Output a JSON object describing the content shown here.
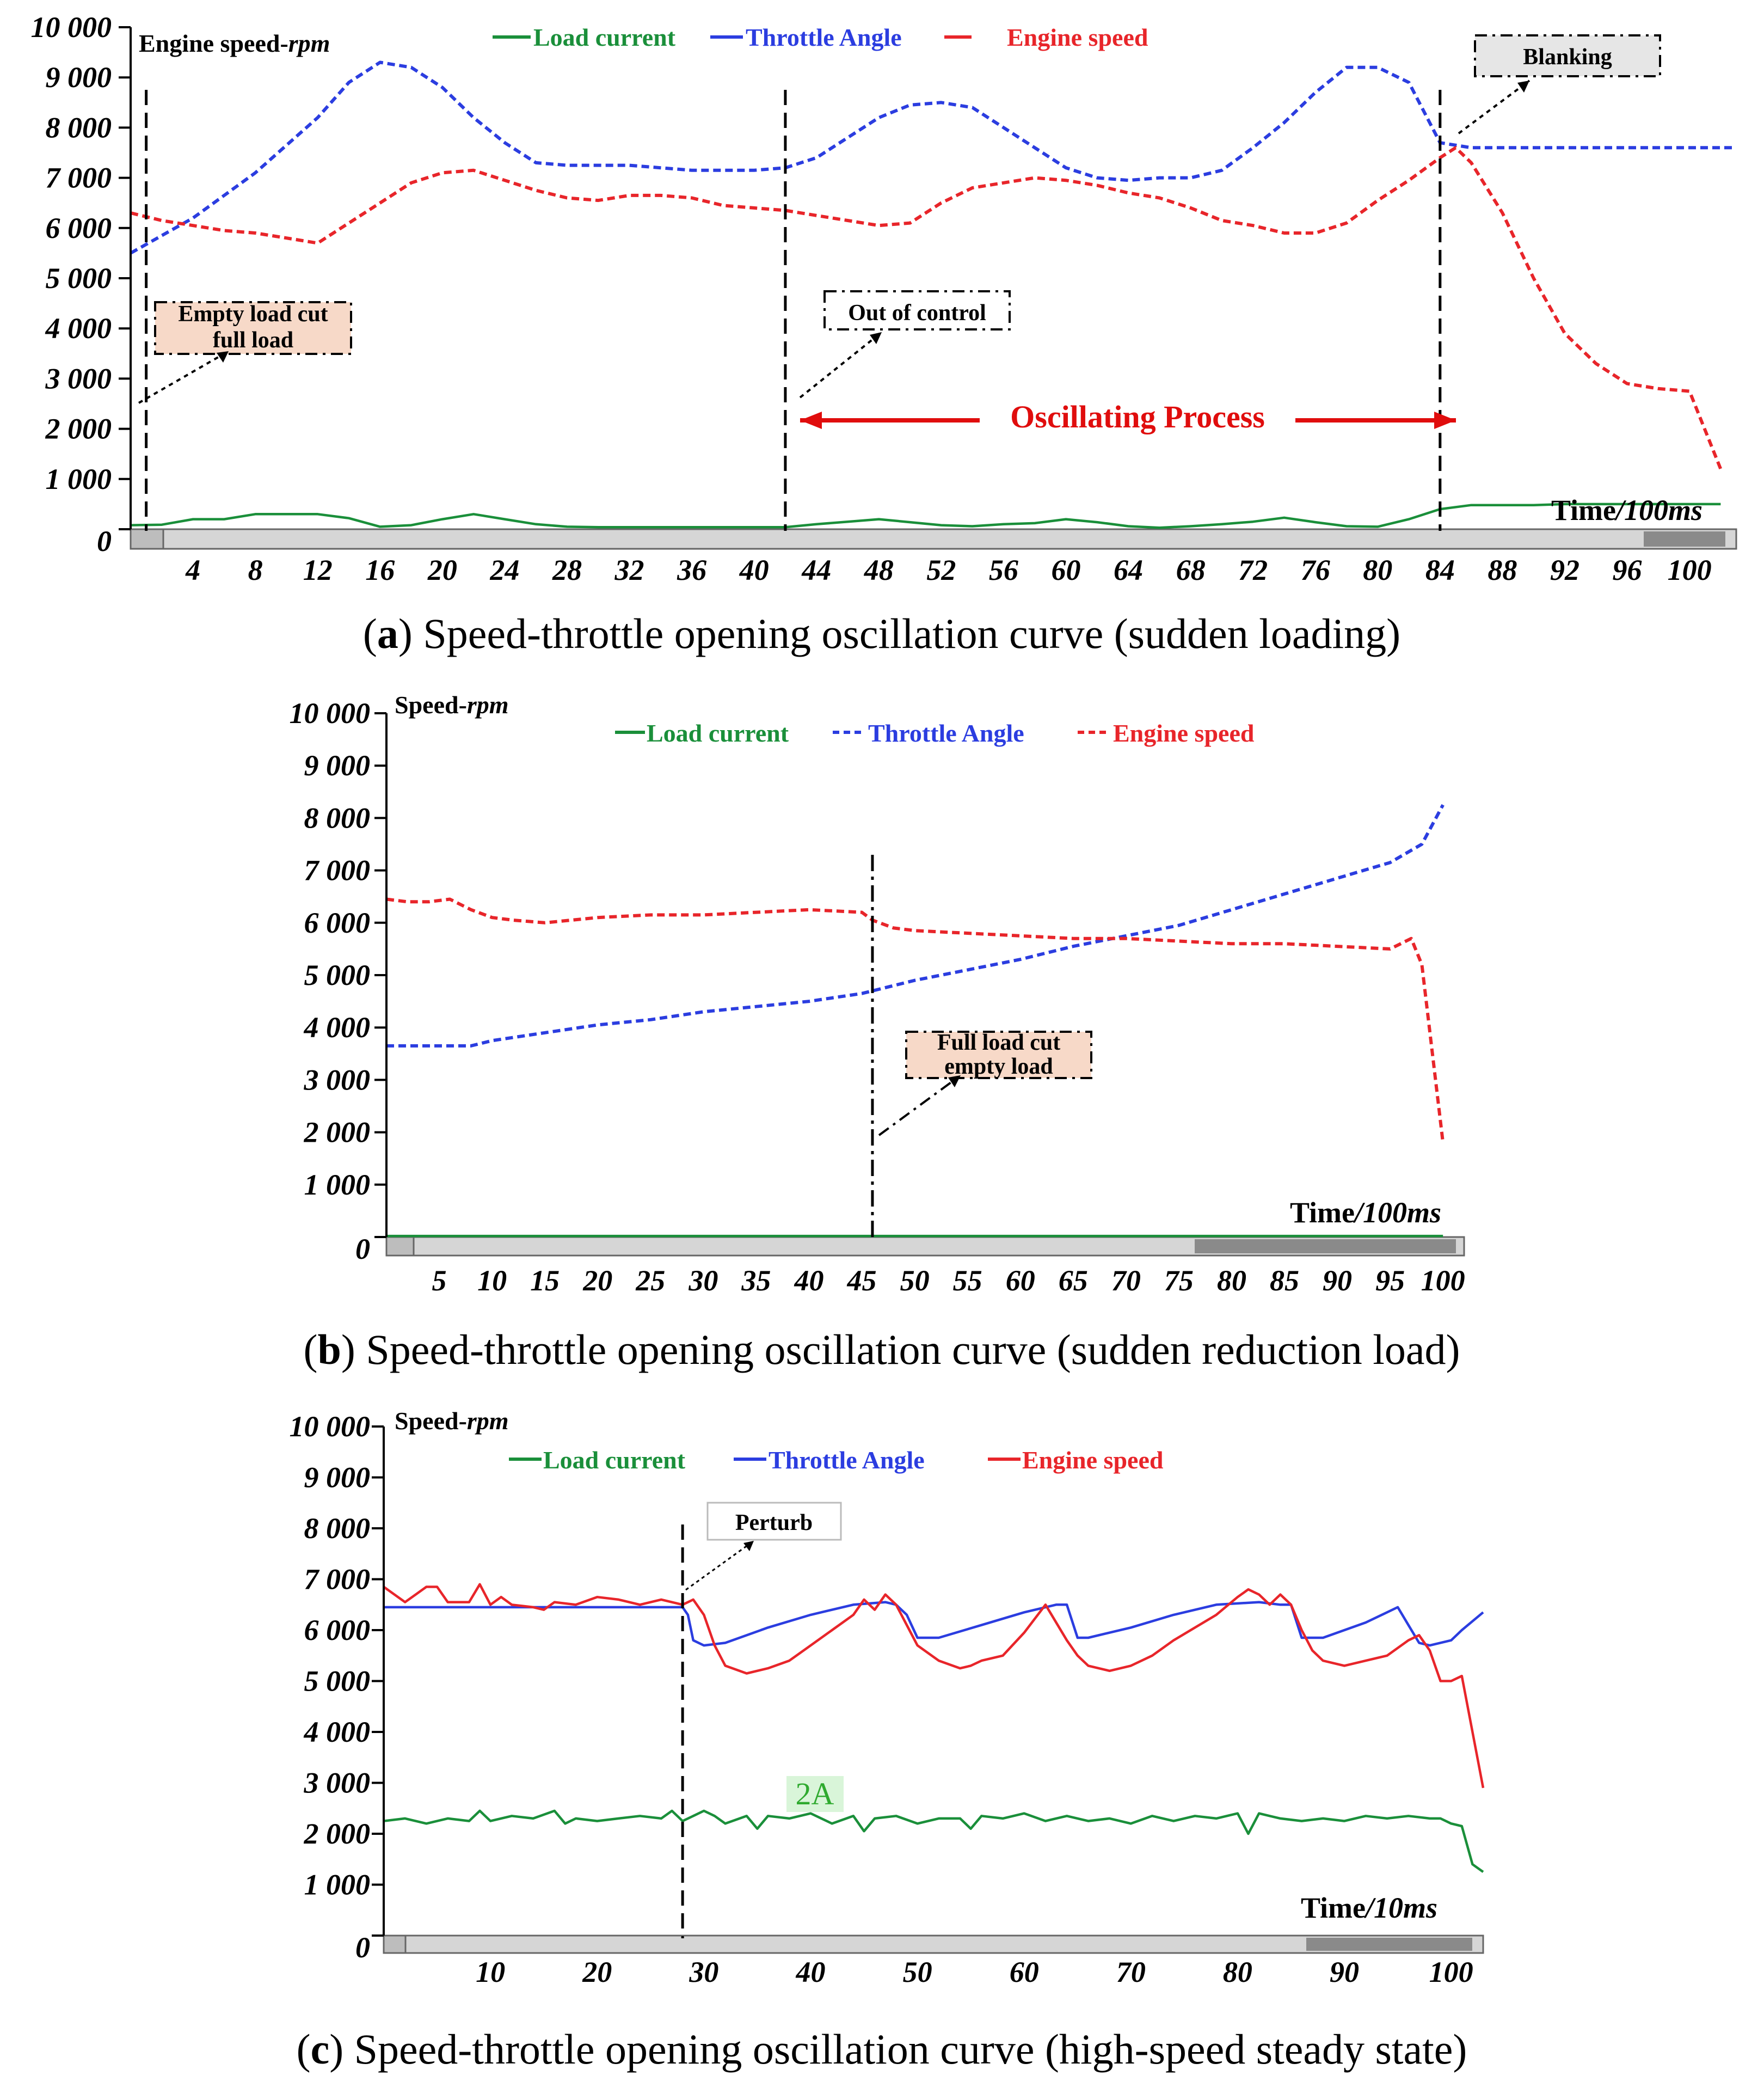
{
  "chart_data": [
    {
      "id": "a",
      "type": "line",
      "panel_letter": "a",
      "caption": "Speed-throttle opening oscillation curve (sudden loading)",
      "ylabel_main": "Engine speed-",
      "ylabel_unit": "rpm",
      "xlabel_main": "Time",
      "xlabel_unit": "/100ms",
      "ylim": [
        0,
        10000
      ],
      "xlim": [
        0,
        103
      ],
      "y_ticks": [
        0,
        1000,
        2000,
        3000,
        4000,
        5000,
        6000,
        7000,
        8000,
        9000,
        10000
      ],
      "y_tick_labels": [
        "0",
        "1 000",
        "2 000",
        "3 000",
        "4 000",
        "5 000",
        "6 000",
        "7 000",
        "8 000",
        "9 000",
        "10 000"
      ],
      "x_ticks": [
        4,
        8,
        12,
        16,
        20,
        24,
        28,
        32,
        36,
        40,
        44,
        48,
        52,
        56,
        60,
        64,
        68,
        72,
        76,
        80,
        84,
        88,
        92,
        96,
        100
      ],
      "x_tick_labels": [
        "4",
        "8",
        "12",
        "16",
        "20",
        "24",
        "28",
        "32",
        "36",
        "40",
        "44",
        "48",
        "52",
        "56",
        "60",
        "64",
        "68",
        "72",
        "76",
        "80",
        "84",
        "88",
        "92",
        "96",
        "100"
      ],
      "legend": [
        "Load current",
        "Throttle Angle",
        "Engine speed"
      ],
      "series": [
        {
          "name": "Throttle Angle",
          "color": "#2b3de0",
          "style": "dashed",
          "x": [
            0,
            4,
            8,
            12,
            14,
            16,
            18,
            20,
            22,
            24,
            26,
            28,
            30,
            32,
            34,
            36,
            38,
            40,
            42,
            44,
            46,
            48,
            50,
            52,
            54,
            56,
            58,
            60,
            62,
            64,
            66,
            68,
            70,
            72,
            74,
            76,
            78,
            80,
            82,
            84,
            86,
            88,
            92,
            96,
            100,
            103
          ],
          "values": [
            5500,
            6200,
            7100,
            8200,
            8900,
            9300,
            9200,
            8800,
            8200,
            7700,
            7300,
            7250,
            7250,
            7250,
            7200,
            7150,
            7150,
            7150,
            7200,
            7400,
            7800,
            8200,
            8450,
            8500,
            8400,
            8000,
            7600,
            7200,
            7000,
            6950,
            7000,
            7000,
            7150,
            7600,
            8100,
            8700,
            9200,
            9200,
            8900,
            7700,
            7600,
            7600,
            7600,
            7600,
            7600,
            7600
          ]
        },
        {
          "name": "Engine speed",
          "color": "#e8252a",
          "style": "dashed",
          "x": [
            0,
            2,
            4,
            6,
            8,
            10,
            12,
            14,
            16,
            18,
            20,
            22,
            24,
            26,
            28,
            30,
            32,
            34,
            36,
            38,
            40,
            42,
            44,
            46,
            48,
            50,
            52,
            54,
            56,
            58,
            60,
            62,
            64,
            66,
            68,
            70,
            72,
            74,
            76,
            78,
            80,
            82,
            84,
            85,
            86,
            88,
            90,
            92,
            94,
            96,
            98,
            100,
            102
          ],
          "values": [
            6300,
            6150,
            6050,
            5950,
            5900,
            5800,
            5700,
            6100,
            6500,
            6900,
            7100,
            7150,
            6950,
            6750,
            6600,
            6550,
            6650,
            6650,
            6600,
            6450,
            6400,
            6350,
            6250,
            6150,
            6050,
            6100,
            6500,
            6800,
            6900,
            7000,
            6950,
            6850,
            6700,
            6600,
            6400,
            6150,
            6050,
            5900,
            5900,
            6100,
            6550,
            6950,
            7400,
            7600,
            7300,
            6300,
            5000,
            3900,
            3300,
            2900,
            2800,
            2750,
            1200
          ]
        },
        {
          "name": "Load current",
          "color": "#1a8f3a",
          "style": "solid",
          "x": [
            0,
            2,
            4,
            6,
            8,
            10,
            12,
            14,
            16,
            18,
            20,
            22,
            24,
            26,
            28,
            30,
            40,
            42,
            44,
            46,
            48,
            50,
            52,
            54,
            56,
            58,
            60,
            62,
            64,
            66,
            68,
            70,
            72,
            74,
            76,
            78,
            80,
            82,
            84,
            86,
            88,
            90,
            92,
            94,
            96,
            98,
            100,
            102
          ],
          "values": [
            80,
            90,
            200,
            200,
            300,
            300,
            300,
            220,
            50,
            80,
            200,
            300,
            200,
            100,
            50,
            40,
            40,
            40,
            100,
            150,
            200,
            140,
            80,
            60,
            100,
            120,
            200,
            140,
            60,
            30,
            60,
            100,
            150,
            230,
            140,
            60,
            50,
            200,
            400,
            480,
            480,
            480,
            500,
            500,
            500,
            500,
            500,
            500
          ]
        }
      ],
      "markers_x": [
        1,
        42,
        84
      ],
      "annotations": {
        "box1_line1": "Empty load cut",
        "box1_line2": "full load",
        "box2": "Out of control",
        "box3": "Blanking",
        "arrow_label": "Oscillating Process"
      }
    },
    {
      "id": "b",
      "type": "line",
      "panel_letter": "b",
      "caption": "Speed-throttle opening oscillation curve (sudden reduction load)",
      "ylabel_main": "Speed-",
      "ylabel_unit": "rpm",
      "xlabel_main": "Time",
      "xlabel_unit": "/100ms",
      "ylim": [
        0,
        10000
      ],
      "xlim": [
        0,
        102
      ],
      "y_ticks": [
        0,
        1000,
        2000,
        3000,
        4000,
        5000,
        6000,
        7000,
        8000,
        9000,
        10000
      ],
      "y_tick_labels": [
        "0",
        "1 000",
        "2 000",
        "3 000",
        "4 000",
        "5 000",
        "6 000",
        "7 000",
        "8 000",
        "9 000",
        "10 000"
      ],
      "x_ticks": [
        5,
        10,
        15,
        20,
        25,
        30,
        35,
        40,
        45,
        50,
        55,
        60,
        65,
        70,
        75,
        80,
        85,
        90,
        95,
        100
      ],
      "x_tick_labels": [
        "5",
        "10",
        "15",
        "20",
        "25",
        "30",
        "35",
        "40",
        "45",
        "50",
        "55",
        "60",
        "65",
        "70",
        "75",
        "80",
        "85",
        "90",
        "95",
        "100"
      ],
      "legend": [
        "Load current",
        "Throttle Angle",
        "Engine speed"
      ],
      "series": [
        {
          "name": "Throttle Angle",
          "color": "#2b3de0",
          "style": "dashed",
          "x": [
            0,
            5,
            8,
            10,
            15,
            20,
            25,
            30,
            35,
            40,
            45,
            50,
            55,
            60,
            65,
            70,
            75,
            80,
            85,
            90,
            95,
            98,
            100
          ],
          "values": [
            3650,
            3650,
            3650,
            3750,
            3900,
            4050,
            4150,
            4300,
            4400,
            4500,
            4650,
            4900,
            5100,
            5300,
            5550,
            5750,
            5950,
            6250,
            6550,
            6850,
            7150,
            7500,
            8250
          ]
        },
        {
          "name": "Engine speed",
          "color": "#e8252a",
          "style": "dashed",
          "x": [
            0,
            2,
            4,
            6,
            8,
            10,
            12,
            15,
            20,
            25,
            30,
            35,
            40,
            45,
            46,
            48,
            50,
            55,
            60,
            65,
            70,
            75,
            80,
            85,
            90,
            95,
            97,
            98,
            100
          ],
          "values": [
            6450,
            6400,
            6400,
            6450,
            6250,
            6100,
            6050,
            6000,
            6100,
            6150,
            6150,
            6200,
            6250,
            6200,
            6050,
            5900,
            5850,
            5800,
            5750,
            5700,
            5700,
            5650,
            5600,
            5600,
            5550,
            5500,
            5700,
            5200,
            1800
          ]
        },
        {
          "name": "Load current",
          "color": "#1a8f3a",
          "style": "solid",
          "x": [
            0,
            100
          ],
          "values": [
            20,
            20
          ]
        }
      ],
      "markers_x": [
        46
      ],
      "annotations": {
        "box1_line1": "Full load  cut",
        "box1_line2": "empty load"
      }
    },
    {
      "id": "c",
      "type": "line",
      "panel_letter": "c",
      "caption": "Speed-throttle opening oscillation curve (high-speed steady state)",
      "ylabel_main": "Speed-",
      "ylabel_unit": "rpm",
      "xlabel_main": "Time",
      "xlabel_unit": "/10ms",
      "ylim": [
        0,
        10000
      ],
      "xlim": [
        0,
        103
      ],
      "y_ticks": [
        0,
        1000,
        2000,
        3000,
        4000,
        5000,
        6000,
        7000,
        8000,
        9000,
        10000
      ],
      "y_tick_labels": [
        "0",
        "1 000",
        "2 000",
        "3 000",
        "4 000",
        "5 000",
        "6 000",
        "7 000",
        "8 000",
        "9 000",
        "10 000"
      ],
      "x_ticks": [
        10,
        20,
        30,
        40,
        50,
        60,
        70,
        80,
        90,
        100
      ],
      "x_tick_labels": [
        "10",
        "20",
        "30",
        "40",
        "50",
        "60",
        "70",
        "80",
        "90",
        "100"
      ],
      "legend": [
        "Load current",
        "Throttle Angle",
        "Engine speed"
      ],
      "series": [
        {
          "name": "Throttle Angle",
          "color": "#2b3de0",
          "style": "solid",
          "x": [
            0,
            10,
            20,
            28,
            28.5,
            29,
            30,
            32,
            36,
            40,
            44,
            47,
            48,
            49,
            50,
            52,
            56,
            60,
            63,
            64,
            65,
            66,
            70,
            74,
            78,
            82,
            84,
            85,
            86,
            88,
            92,
            95,
            96,
            97,
            98,
            100,
            101,
            103
          ],
          "values": [
            6450,
            6450,
            6450,
            6450,
            6300,
            5800,
            5700,
            5750,
            6050,
            6300,
            6500,
            6550,
            6500,
            6300,
            5850,
            5850,
            6100,
            6350,
            6500,
            6500,
            5850,
            5850,
            6050,
            6300,
            6500,
            6550,
            6500,
            6500,
            5850,
            5850,
            6150,
            6450,
            6100,
            5750,
            5700,
            5800,
            6000,
            6350
          ]
        },
        {
          "name": "Engine speed",
          "color": "#e8252a",
          "style": "solid",
          "x": [
            0,
            2,
            4,
            5,
            6,
            8,
            9,
            10,
            11,
            12,
            14,
            15,
            16,
            18,
            20,
            22,
            24,
            26,
            28,
            29,
            30,
            31,
            32,
            34,
            36,
            38,
            40,
            42,
            44,
            45,
            46,
            47,
            48,
            49,
            50,
            52,
            54,
            55,
            56,
            58,
            60,
            62,
            64,
            65,
            66,
            68,
            70,
            72,
            74,
            76,
            78,
            80,
            81,
            82,
            83,
            84,
            85,
            86,
            87,
            88,
            90,
            92,
            94,
            96,
            97,
            98,
            99,
            100,
            101,
            102,
            103
          ],
          "values": [
            6850,
            6550,
            6850,
            6850,
            6550,
            6550,
            6900,
            6500,
            6650,
            6500,
            6450,
            6400,
            6550,
            6500,
            6650,
            6600,
            6500,
            6600,
            6500,
            6600,
            6300,
            5700,
            5300,
            5150,
            5250,
            5400,
            5700,
            6000,
            6300,
            6600,
            6400,
            6700,
            6500,
            6100,
            5700,
            5400,
            5250,
            5300,
            5400,
            5500,
            5950,
            6500,
            5800,
            5500,
            5300,
            5200,
            5300,
            5500,
            5800,
            6050,
            6300,
            6650,
            6800,
            6700,
            6500,
            6700,
            6500,
            6000,
            5600,
            5400,
            5300,
            5400,
            5500,
            5800,
            5900,
            5600,
            5000,
            5000,
            5100,
            4000,
            2900
          ]
        },
        {
          "name": "Load current",
          "color": "#1a8f3a",
          "style": "solid",
          "x": [
            0,
            2,
            4,
            6,
            8,
            9,
            10,
            12,
            14,
            16,
            17,
            18,
            20,
            22,
            24,
            26,
            27,
            28,
            29,
            30,
            31,
            32,
            34,
            35,
            36,
            38,
            40,
            42,
            44,
            45,
            46,
            48,
            50,
            52,
            54,
            55,
            56,
            58,
            60,
            62,
            64,
            66,
            68,
            70,
            72,
            74,
            76,
            78,
            80,
            81,
            82,
            83,
            84,
            86,
            88,
            90,
            92,
            94,
            96,
            98,
            99,
            100,
            101,
            102,
            103
          ],
          "values": [
            2250,
            2300,
            2200,
            2300,
            2250,
            2450,
            2250,
            2350,
            2300,
            2450,
            2200,
            2300,
            2250,
            2300,
            2350,
            2300,
            2450,
            2250,
            2350,
            2450,
            2350,
            2200,
            2350,
            2100,
            2350,
            2300,
            2400,
            2200,
            2350,
            2050,
            2300,
            2350,
            2200,
            2300,
            2300,
            2100,
            2350,
            2300,
            2400,
            2250,
            2350,
            2250,
            2300,
            2200,
            2350,
            2250,
            2350,
            2300,
            2400,
            2000,
            2400,
            2350,
            2300,
            2250,
            2300,
            2250,
            2350,
            2300,
            2350,
            2300,
            2300,
            2200,
            2150,
            1400,
            1250
          ]
        }
      ],
      "markers_x": [
        28
      ],
      "annotations": {
        "box1_line1": "Perturb",
        "green_label": "2A"
      }
    }
  ]
}
